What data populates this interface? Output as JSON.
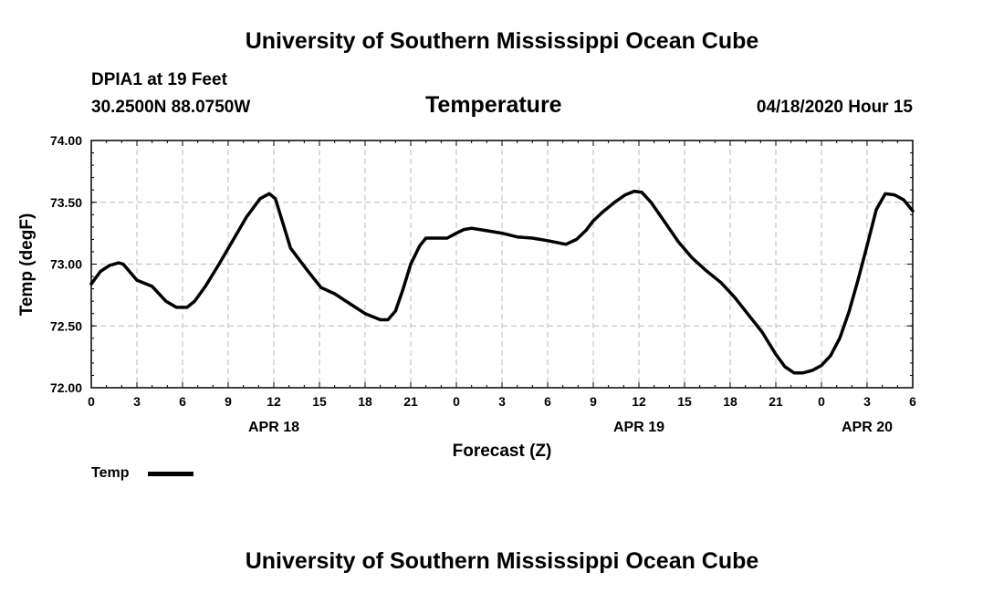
{
  "header": {
    "title_top": "University of Southern Mississippi Ocean Cube",
    "station": "DPIA1 at 19 Feet",
    "location": "30.2500N 88.0750W",
    "datetime": "04/18/2020 Hour 15"
  },
  "footer": {
    "title_bottom": "University of Southern Mississippi Ocean Cube"
  },
  "legend": {
    "label": "Temp"
  },
  "colors": {
    "line": "#000000",
    "grid": "#bbbbbb"
  },
  "chart_data": {
    "type": "line",
    "title": "Temperature",
    "xlabel": "Forecast (Z)",
    "ylabel": "Temp (degF)",
    "ylim": [
      72.0,
      74.0
    ],
    "xlim": [
      0,
      54
    ],
    "grid": true,
    "y_ticks": [
      "72.00",
      "72.50",
      "73.00",
      "73.50",
      "74.00"
    ],
    "x_ticks": [
      {
        "x": 0,
        "label": "0"
      },
      {
        "x": 3,
        "label": "3"
      },
      {
        "x": 6,
        "label": "6"
      },
      {
        "x": 9,
        "label": "9"
      },
      {
        "x": 12,
        "label": "12"
      },
      {
        "x": 15,
        "label": "15"
      },
      {
        "x": 18,
        "label": "18"
      },
      {
        "x": 21,
        "label": "21"
      },
      {
        "x": 24,
        "label": "0"
      },
      {
        "x": 27,
        "label": "3"
      },
      {
        "x": 30,
        "label": "6"
      },
      {
        "x": 33,
        "label": "9"
      },
      {
        "x": 36,
        "label": "12"
      },
      {
        "x": 39,
        "label": "15"
      },
      {
        "x": 42,
        "label": "18"
      },
      {
        "x": 45,
        "label": "21"
      },
      {
        "x": 48,
        "label": "0"
      },
      {
        "x": 51,
        "label": "3"
      },
      {
        "x": 54,
        "label": "6"
      }
    ],
    "date_labels": [
      {
        "x": 12,
        "label": "APR 18"
      },
      {
        "x": 36,
        "label": "APR 19"
      },
      {
        "x": 51,
        "label": "APR 20"
      }
    ],
    "series": [
      {
        "name": "Temp",
        "x": [
          0,
          0.6,
          1.2,
          1.8,
          2.1,
          3,
          4,
          4.9,
          5.6,
          6.3,
          6.8,
          7.5,
          8.4,
          9.3,
          10.2,
          11.1,
          11.7,
          12.1,
          13.1,
          14.2,
          15.1,
          16,
          17,
          18,
          19,
          19.5,
          20,
          20.5,
          21,
          21.6,
          22,
          22.7,
          23.4,
          24,
          24.5,
          25,
          26,
          27,
          28,
          29,
          30,
          31.2,
          31.9,
          32.5,
          33,
          33.6,
          34.4,
          35.1,
          35.7,
          36.2,
          36.8,
          37.7,
          38.6,
          39.5,
          40.4,
          41.4,
          42.3,
          43.2,
          44.1,
          45,
          45.6,
          46.2,
          46.8,
          47.4,
          48,
          48.6,
          49.2,
          49.8,
          50.4,
          51,
          51.6,
          52.2,
          52.8,
          53.4,
          54
        ],
        "values": [
          72.84,
          72.94,
          72.99,
          73.01,
          73.0,
          72.87,
          72.82,
          72.7,
          72.65,
          72.65,
          72.7,
          72.82,
          73.0,
          73.19,
          73.38,
          73.53,
          73.57,
          73.53,
          73.13,
          72.95,
          72.81,
          72.76,
          72.68,
          72.6,
          72.55,
          72.55,
          72.62,
          72.8,
          73.0,
          73.15,
          73.21,
          73.21,
          73.21,
          73.25,
          73.28,
          73.29,
          73.27,
          73.25,
          73.22,
          73.21,
          73.19,
          73.16,
          73.2,
          73.27,
          73.35,
          73.42,
          73.5,
          73.56,
          73.59,
          73.58,
          73.5,
          73.34,
          73.18,
          73.05,
          72.95,
          72.85,
          72.73,
          72.59,
          72.45,
          72.27,
          72.17,
          72.12,
          72.12,
          72.14,
          72.18,
          72.26,
          72.4,
          72.61,
          72.87,
          73.15,
          73.44,
          73.57,
          73.56,
          73.52,
          73.43
        ]
      }
    ]
  }
}
